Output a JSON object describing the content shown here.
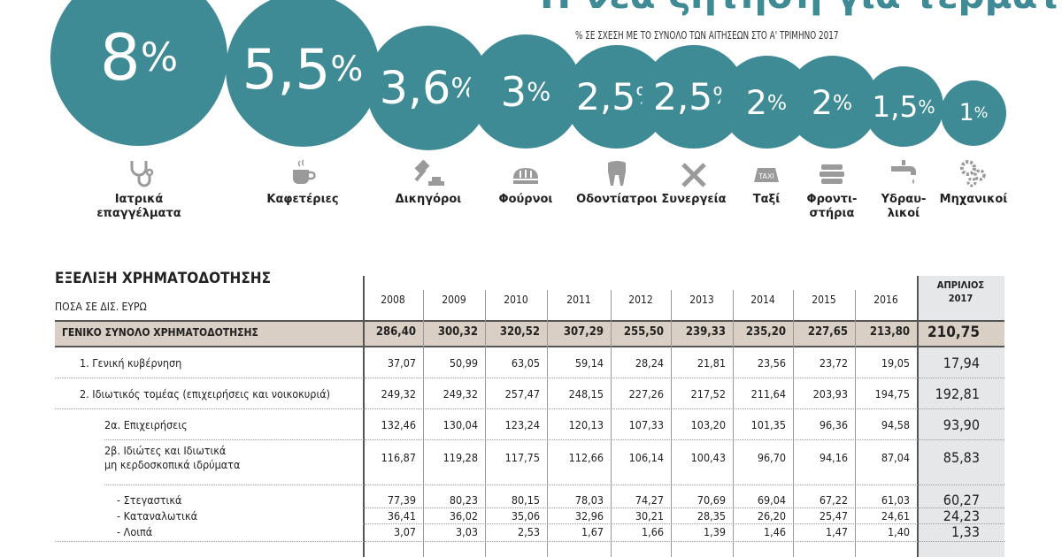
{
  "header": {
    "title": "Η νέα ζήτηση για τερματικά POS",
    "subtitle": "% ΣΕ ΣΧΕΣΗ ΜΕ ΤΟ ΣΥΝΟΛΟ ΤΩΝ ΑΙΤΗΣΕΩΝ ΣΤΟ Α' ΤΡΙΜΗΝΟ 2017"
  },
  "colors": {
    "bubble": "#3e8a95",
    "icon": "#9a9a9a",
    "total_row": "#d9cfc4",
    "april_column": "#e6e7e9"
  },
  "chart_data": [
    {
      "type": "bubble",
      "title": "Η νέα ζήτηση για τερματικά POS",
      "subtitle": "% ΣΕ ΣΧΕΣΗ ΜΕ ΤΟ ΣΥΝΟΛΟ ΤΩΝ ΑΙΤΗΣΕΩΝ ΣΤΟ Α' ΤΡΙΜΗΝΟ 2017",
      "unit": "%",
      "items": [
        {
          "label": "Ιατρικά επαγγέλματα",
          "lines": [
            "Ιατρικά",
            "επαγγέλματα"
          ],
          "value": 8,
          "display": "8",
          "icon": "stethoscope-icon"
        },
        {
          "label": "Καφετέριες",
          "lines": [
            "Καφετέριες"
          ],
          "value": 5.5,
          "display": "5,5",
          "icon": "coffee-cup-icon"
        },
        {
          "label": "Δικηγόροι",
          "lines": [
            "Δικηγόροι"
          ],
          "value": 3.6,
          "display": "3,6",
          "icon": "gavel-icon"
        },
        {
          "label": "Φούρνοι",
          "lines": [
            "Φούρνοι"
          ],
          "value": 3,
          "display": "3",
          "icon": "bread-icon"
        },
        {
          "label": "Οδοντίατροι",
          "lines": [
            "Οδοντίατροι"
          ],
          "value": 2.5,
          "display": "2,5",
          "icon": "tooth-icon"
        },
        {
          "label": "Συνεργεία",
          "lines": [
            "Συνεργεία"
          ],
          "value": 2.5,
          "display": "2,5",
          "icon": "tools-icon"
        },
        {
          "label": "Ταξί",
          "lines": [
            "Ταξί"
          ],
          "value": 2,
          "display": "2",
          "icon": "taxi-sign-icon",
          "icon_text": "TAXI"
        },
        {
          "label": "Φροντιστήρια",
          "lines": [
            "Φροντι-",
            "στήρια"
          ],
          "value": 2,
          "display": "2",
          "icon": "books-icon"
        },
        {
          "label": "Υδραυλικοί",
          "lines": [
            "Υδραυ-",
            "λικοί"
          ],
          "value": 1.5,
          "display": "1,5",
          "icon": "faucet-icon"
        },
        {
          "label": "Μηχανικοί",
          "lines": [
            "Μηχανικοί"
          ],
          "value": 1,
          "display": "1",
          "icon": "gears-icon"
        }
      ]
    },
    {
      "type": "table",
      "title": "ΕΞΕΛΙΞΗ ΧΡΗΜΑΤΟΔΟΤΗΣΗΣ",
      "unit": "ΠΟΣΑ ΣΕ ΔΙΣ. ΕΥΡΩ",
      "columns": [
        "2008",
        "2009",
        "2010",
        "2011",
        "2012",
        "2013",
        "2014",
        "2015",
        "2016"
      ],
      "last_column": [
        "ΑΠΡΙΛΙΟΣ",
        "2017"
      ],
      "rows": [
        {
          "label": [
            "ΓΕΝΙΚΟ ΣΥΝΟΛΟ ΧΡΗΜΑΤΟΔΟΤΗΣΗΣ"
          ],
          "values": [
            "286,40",
            "300,32",
            "320,52",
            "307,29",
            "255,50",
            "239,33",
            "235,20",
            "227,65",
            "213,80",
            "210,75"
          ]
        },
        {
          "label": [
            "1. Γενική κυβέρνηση"
          ],
          "values": [
            "37,07",
            "50,99",
            "63,05",
            "59,14",
            "28,24",
            "21,81",
            "23,56",
            "23,72",
            "19,05",
            "17,94"
          ]
        },
        {
          "label": [
            "2. Ιδιωτικός τομέας (επιχειρήσεις και νοικοκυριά)"
          ],
          "values": [
            "249,32",
            "249,32",
            "257,47",
            "248,15",
            "227,26",
            "217,52",
            "211,64",
            "203,93",
            "194,75",
            "192,81"
          ]
        },
        {
          "label": [
            "2α. Επιχειρήσεις"
          ],
          "values": [
            "132,46",
            "130,04",
            "123,24",
            "120,13",
            "107,33",
            "103,20",
            "101,35",
            "96,36",
            "94,58",
            "93,90"
          ]
        },
        {
          "label": [
            "2β. Ιδιώτες και Ιδιωτικά",
            "μη κερδοσκοπικά ιδρύματα"
          ],
          "values": [
            "116,87",
            "119,28",
            "117,75",
            "112,66",
            "106,14",
            "100,43",
            "96,70",
            "94,16",
            "87,04",
            "85,83"
          ]
        },
        {
          "label": [
            "- Στεγαστικά"
          ],
          "values": [
            "77,39",
            "80,23",
            "80,15",
            "78,03",
            "74,27",
            "70,69",
            "69,04",
            "67,22",
            "61,03",
            "60,27"
          ]
        },
        {
          "label": [
            "- Καταναλωτικά"
          ],
          "values": [
            "36,41",
            "36,02",
            "35,06",
            "32,96",
            "30,21",
            "28,35",
            "26,20",
            "25,47",
            "24,61",
            "24,23"
          ]
        },
        {
          "label": [
            "- Λοιπά"
          ],
          "values": [
            "3,07",
            "3,03",
            "2,53",
            "1,67",
            "1,66",
            "1,39",
            "1,46",
            "1,47",
            "1,40",
            "1,33"
          ]
        }
      ]
    }
  ]
}
